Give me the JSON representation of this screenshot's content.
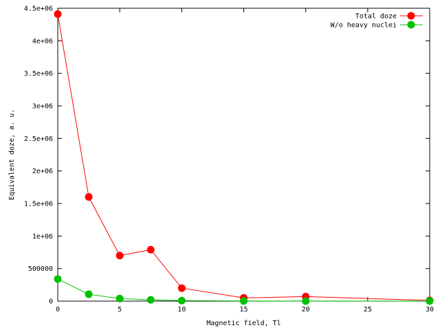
{
  "chart_data": {
    "type": "line",
    "xlabel": "Magnetic field, Tl",
    "ylabel": "Equivalent doze, a. u.",
    "xlim": [
      0,
      30
    ],
    "ylim": [
      0,
      4500000
    ],
    "xticks": [
      {
        "value": 0,
        "label": "0"
      },
      {
        "value": 5,
        "label": "5"
      },
      {
        "value": 10,
        "label": "10"
      },
      {
        "value": 15,
        "label": "15"
      },
      {
        "value": 20,
        "label": "20"
      },
      {
        "value": 25,
        "label": "25"
      },
      {
        "value": 30,
        "label": "30"
      }
    ],
    "yticks": [
      {
        "value": 0,
        "label": "0"
      },
      {
        "value": 500000,
        "label": "500000"
      },
      {
        "value": 1000000,
        "label": "1e+06"
      },
      {
        "value": 1500000,
        "label": "1.5e+06"
      },
      {
        "value": 2000000,
        "label": "2e+06"
      },
      {
        "value": 2500000,
        "label": "2.5e+06"
      },
      {
        "value": 3000000,
        "label": "3e+06"
      },
      {
        "value": 3500000,
        "label": "3.5e+06"
      },
      {
        "value": 4000000,
        "label": "4e+06"
      },
      {
        "value": 4500000,
        "label": "4.5e+06"
      }
    ],
    "grid": false,
    "legend_position": "top-right",
    "series": [
      {
        "name": "Total doze",
        "color": "#ff0000",
        "x": [
          0,
          2.5,
          5,
          7.5,
          10,
          15,
          20,
          30
        ],
        "y": [
          4410000,
          1600000,
          700000,
          790000,
          200000,
          50000,
          70000,
          10000
        ]
      },
      {
        "name": "W/o heavy nuclei",
        "color": "#00c000",
        "x": [
          0,
          2.5,
          5,
          7.5,
          10,
          15,
          20,
          30
        ],
        "y": [
          340000,
          105000,
          40000,
          20000,
          8000,
          2000,
          1500,
          1000
        ]
      }
    ]
  }
}
